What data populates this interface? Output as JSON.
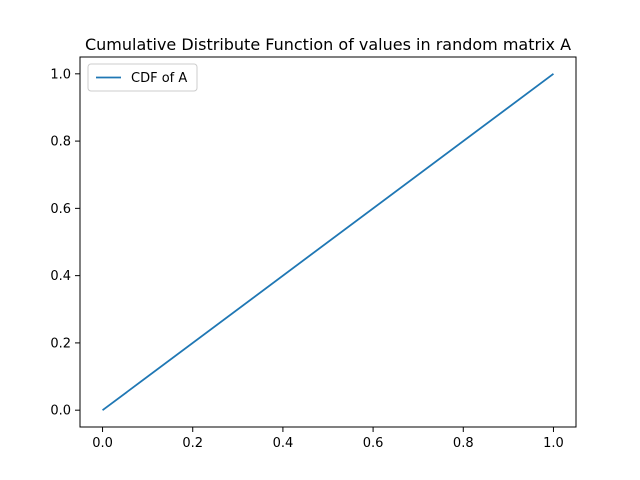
{
  "chart_data": {
    "type": "line",
    "title": "Cumulative Distribute Function of values in random matrix A",
    "xlabel": "",
    "ylabel": "",
    "xlim": [
      -0.05,
      1.05
    ],
    "ylim": [
      -0.05,
      1.05
    ],
    "x_ticks": [
      0.0,
      0.2,
      0.4,
      0.6,
      0.8,
      1.0
    ],
    "x_tick_labels": [
      "0.0",
      "0.2",
      "0.4",
      "0.6",
      "0.8",
      "1.0"
    ],
    "y_ticks": [
      0.0,
      0.2,
      0.4,
      0.6,
      0.8,
      1.0
    ],
    "y_tick_labels": [
      "0.0",
      "0.2",
      "0.4",
      "0.6",
      "0.8",
      "1.0"
    ],
    "grid": false,
    "legend_position": "top-left",
    "series": [
      {
        "name": "CDF of A",
        "color": "#1f77b4",
        "x": [
          0.0,
          1.0
        ],
        "y": [
          0.0,
          1.0
        ]
      }
    ]
  }
}
